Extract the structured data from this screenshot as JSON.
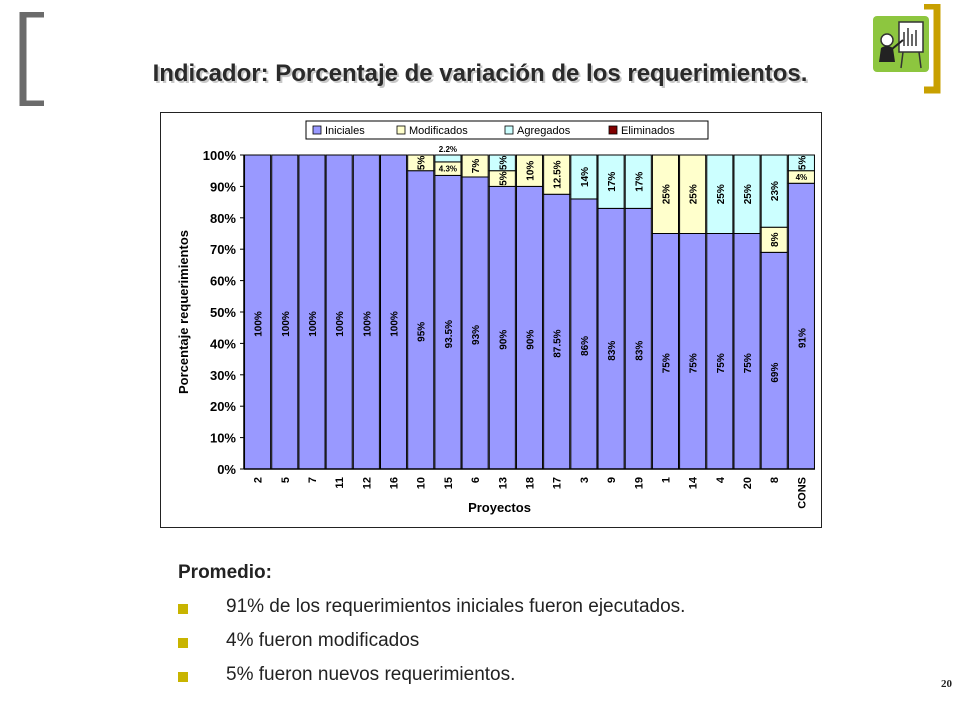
{
  "slide": {
    "title": "Indicador: Porcentaje de variación de los requerimientos.",
    "number": "20"
  },
  "summary": {
    "heading": "Promedio:",
    "bullets": [
      "91% de los requerimientos iniciales fueron ejecutados.",
      "4% fueron modificados",
      "5% fueron nuevos requerimientos."
    ]
  },
  "colors": {
    "bracket_left": "#6b6b6b",
    "bracket_right": "#c8a000",
    "bullet": "#c8b400",
    "iniciales": "#9999ff",
    "modificados": "#ffffcc",
    "agregados": "#ccffff",
    "eliminados": "#800000"
  },
  "icons": {
    "slide_icon": "presenter-at-whiteboard-icon"
  },
  "chart_data": {
    "type": "bar",
    "stacked": true,
    "title": "",
    "xlabel": "Proyectos",
    "ylabel": "Porcentaje requerimientos",
    "ylim": [
      0,
      100
    ],
    "yticks": [
      "0%",
      "10%",
      "20%",
      "30%",
      "40%",
      "50%",
      "60%",
      "70%",
      "80%",
      "90%",
      "100%"
    ],
    "grid": false,
    "legend_position": "top",
    "categories": [
      "2",
      "5",
      "7",
      "11",
      "12",
      "16",
      "10",
      "15",
      "6",
      "13",
      "18",
      "17",
      "3",
      "9",
      "19",
      "1",
      "14",
      "4",
      "20",
      "8",
      "CONS"
    ],
    "series": [
      {
        "name": "Iniciales",
        "values": [
          100,
          100,
          100,
          100,
          100,
          100,
          95,
          93.5,
          93,
          90,
          90,
          87.5,
          86,
          83,
          83,
          75,
          75,
          75,
          75,
          69,
          91
        ],
        "labels": [
          "100%",
          "100%",
          "100%",
          "100%",
          "100%",
          "100%",
          "95%",
          "93.5%",
          "93%",
          "90%",
          "90%",
          "87.5%",
          "86%",
          "83%",
          "83%",
          "75%",
          "75%",
          "75%",
          "75%",
          "69%",
          "91%"
        ]
      },
      {
        "name": "Modificados",
        "values": [
          0,
          0,
          0,
          0,
          0,
          0,
          5,
          4.3,
          7,
          5,
          10,
          12.5,
          0,
          0,
          0,
          25,
          25,
          0,
          0,
          8,
          4
        ],
        "labels": [
          "",
          "",
          "",
          "",
          "",
          "",
          "5%",
          "4.3%",
          "7%",
          "5%",
          "10%",
          "12.5%",
          "",
          "",
          "",
          "25%",
          "25%",
          "",
          "",
          "8%",
          "4%"
        ]
      },
      {
        "name": "Agregados",
        "values": [
          0,
          0,
          0,
          0,
          0,
          0,
          0,
          2.2,
          0,
          5,
          0,
          0,
          14,
          17,
          17,
          0,
          0,
          25,
          25,
          23,
          5
        ],
        "labels": [
          "",
          "",
          "",
          "",
          "",
          "",
          "",
          "2.2%",
          "",
          "5%",
          "",
          "",
          "14%",
          "17%",
          "17%",
          "",
          "",
          "25%",
          "25%",
          "23%",
          "5%"
        ]
      },
      {
        "name": "Eliminados",
        "values": [
          0,
          0,
          0,
          0,
          0,
          0,
          0,
          0,
          0,
          0,
          0,
          0,
          0,
          0,
          0,
          0,
          0,
          0,
          0,
          0,
          0
        ],
        "labels": [
          "",
          "",
          "",
          "",
          "",
          "",
          "",
          "",
          "",
          "",
          "",
          "",
          "",
          "",
          "",
          "",
          "",
          "",
          "",
          "",
          ""
        ]
      }
    ]
  }
}
